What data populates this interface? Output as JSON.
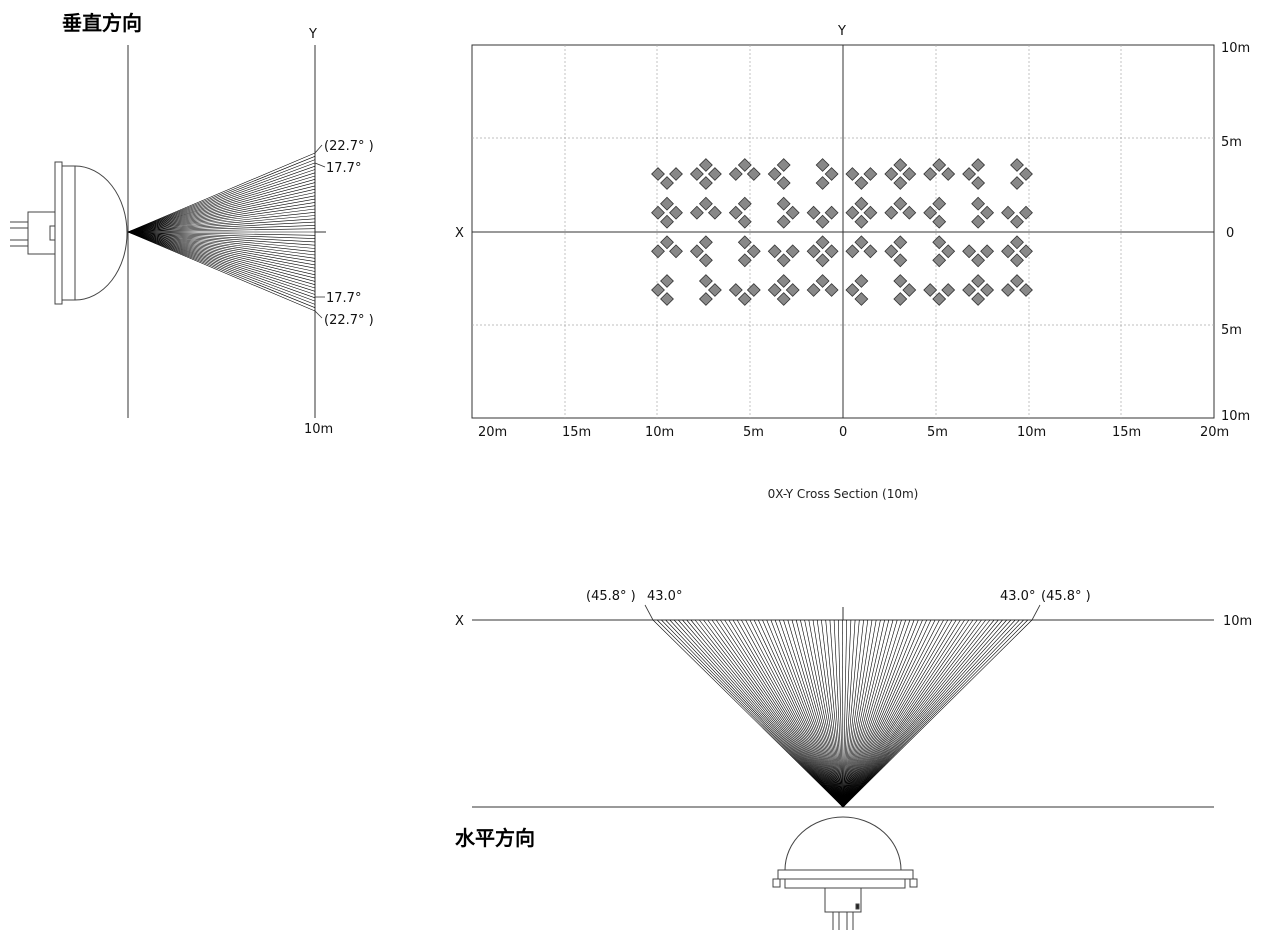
{
  "vertical": {
    "title": "垂直方向",
    "y_label": "Y",
    "distance_label": "10m",
    "angles": {
      "outer_top": "(22.7° )",
      "inner_top": "17.7°",
      "inner_bottom": "17.7°",
      "outer_bottom": "(22.7° )"
    }
  },
  "cross_section": {
    "y_label": "Y",
    "x_label": "X",
    "caption": "0X-Y Cross Section (10m)",
    "x_ticks": [
      "20m",
      "15m",
      "10m",
      "5m",
      "0",
      "5m",
      "10m",
      "15m",
      "20m"
    ],
    "y_ticks": [
      "10m",
      "5m",
      "0",
      "5m",
      "10m"
    ],
    "led_columns": 10,
    "led_rows": 4
  },
  "horizontal": {
    "title": "水平方向",
    "x_label": "X",
    "distance_label": "10m",
    "angles": {
      "left_outer": "(45.8° )",
      "left_inner": "43.0°",
      "right_inner": "43.0°",
      "right_outer": "(45.8° )"
    }
  }
}
